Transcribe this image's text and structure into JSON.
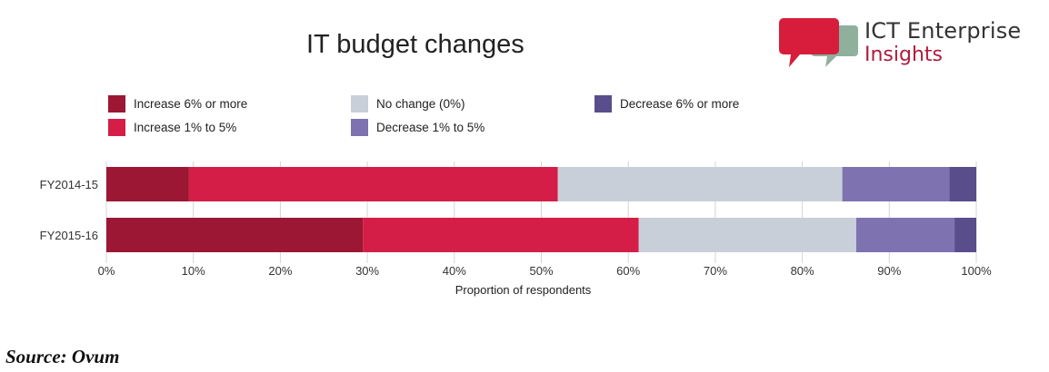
{
  "header": {
    "title": "IT budget changes",
    "logo": {
      "line1": "ICT Enterprise",
      "line2": "Insights",
      "icon": "speech-bubbles-icon"
    }
  },
  "footer": {
    "source": "Source: Ovum"
  },
  "chart_data": {
    "type": "bar",
    "orientation": "horizontal",
    "stacked": true,
    "title": "IT budget changes",
    "xlabel": "Proportion of respondents",
    "ylabel": "",
    "xlim": [
      0,
      100
    ],
    "x_ticks": [
      "0%",
      "10%",
      "20%",
      "30%",
      "40%",
      "50%",
      "60%",
      "70%",
      "80%",
      "90%",
      "100%"
    ],
    "grid": true,
    "legend_position": "top",
    "categories": [
      "FY2014-15",
      "FY2015-16"
    ],
    "series": [
      {
        "name": "Increase 6% or more",
        "color": "#9b1734",
        "values": [
          9.5,
          29.5
        ]
      },
      {
        "name": "Increase 1% to 5%",
        "color": "#d41e48",
        "values": [
          42.4,
          31.7
        ]
      },
      {
        "name": "No change (0%)",
        "color": "#c9cfd8",
        "values": [
          32.7,
          25.0
        ]
      },
      {
        "name": "Decrease 1% to 5%",
        "color": "#7e72b0",
        "values": [
          12.3,
          11.3
        ]
      },
      {
        "name": "Decrease 6% or more",
        "color": "#5a4d8c",
        "values": [
          3.1,
          2.5
        ]
      }
    ]
  }
}
